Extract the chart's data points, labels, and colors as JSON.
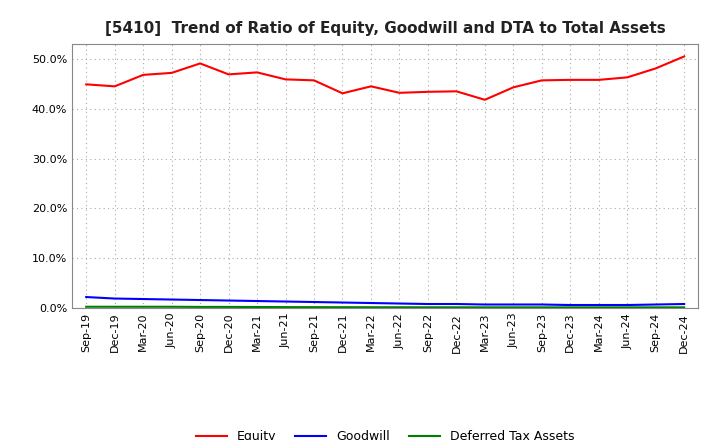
{
  "title": "[5410]  Trend of Ratio of Equity, Goodwill and DTA to Total Assets",
  "x_labels": [
    "Sep-19",
    "Dec-19",
    "Mar-20",
    "Jun-20",
    "Sep-20",
    "Dec-20",
    "Mar-21",
    "Jun-21",
    "Sep-21",
    "Dec-21",
    "Mar-22",
    "Jun-22",
    "Sep-22",
    "Dec-22",
    "Mar-23",
    "Jun-23",
    "Sep-23",
    "Dec-23",
    "Mar-24",
    "Jun-24",
    "Sep-24",
    "Dec-24"
  ],
  "equity": [
    44.9,
    44.5,
    46.8,
    47.2,
    49.1,
    46.9,
    47.3,
    45.9,
    45.7,
    43.1,
    44.5,
    43.2,
    43.4,
    43.5,
    41.8,
    44.3,
    45.7,
    45.8,
    45.8,
    46.3,
    48.1,
    50.5
  ],
  "goodwill": [
    2.2,
    1.9,
    1.8,
    1.7,
    1.6,
    1.5,
    1.4,
    1.3,
    1.2,
    1.1,
    1.0,
    0.9,
    0.8,
    0.8,
    0.7,
    0.7,
    0.7,
    0.6,
    0.6,
    0.6,
    0.7,
    0.8
  ],
  "dta": [
    0.25,
    0.25,
    0.25,
    0.25,
    0.22,
    0.22,
    0.2,
    0.18,
    0.17,
    0.16,
    0.15,
    0.15,
    0.14,
    0.14,
    0.13,
    0.13,
    0.13,
    0.13,
    0.13,
    0.13,
    0.13,
    0.13
  ],
  "equity_color": "#FF0000",
  "goodwill_color": "#0000FF",
  "dta_color": "#008000",
  "ylim": [
    0.0,
    53.0
  ],
  "yticks": [
    0.0,
    10.0,
    20.0,
    30.0,
    40.0,
    50.0
  ],
  "background_color": "#FFFFFF",
  "plot_bg_color": "#FFFFFF",
  "grid_color": "#AAAAAA",
  "title_fontsize": 11,
  "tick_fontsize": 8,
  "legend_labels": [
    "Equity",
    "Goodwill",
    "Deferred Tax Assets"
  ]
}
